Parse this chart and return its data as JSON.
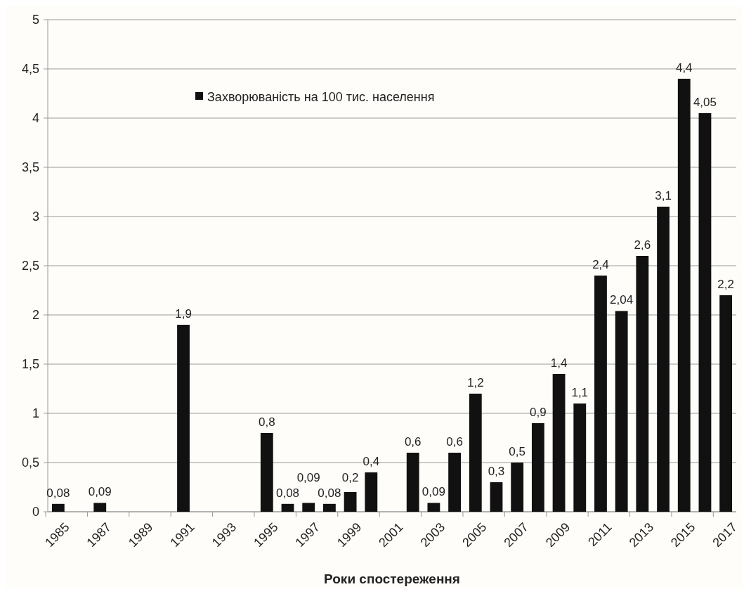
{
  "chart_data": {
    "type": "bar",
    "xlabel": "Роки  спостереження",
    "categories": [
      "1985",
      null,
      "1987",
      null,
      "1989",
      null,
      "1991",
      null,
      "1993",
      null,
      "1995",
      null,
      "1997",
      null,
      "1999",
      null,
      "2001",
      null,
      "2003",
      null,
      "2005",
      null,
      "2007",
      null,
      "2009",
      null,
      "2011",
      null,
      "2013",
      null,
      "2015",
      null,
      "2017"
    ],
    "series": [
      {
        "name": "Захворюваність на 100 тис. населення",
        "color": "#111111",
        "values": [
          0.08,
          null,
          0.09,
          null,
          null,
          null,
          1.9,
          null,
          null,
          null,
          0.8,
          0.08,
          0.09,
          0.08,
          0.2,
          0.4,
          null,
          0.6,
          0.09,
          0.6,
          1.2,
          0.3,
          0.5,
          0.9,
          1.4,
          1.1,
          2.4,
          2.04,
          2.6,
          3.1,
          4.4,
          4.05,
          2.2
        ],
        "value_labels": [
          "0,08",
          null,
          "0,09",
          null,
          null,
          null,
          "1,9",
          null,
          null,
          null,
          "0,8",
          "0,08",
          "0,09",
          "0,08",
          "0,2",
          "0,4",
          null,
          "0,6",
          "0,09",
          "0,6",
          "1,2",
          "0,3",
          "0,5",
          "0,9",
          "1,4",
          "1,1",
          "2,4",
          "2,04",
          "2,6",
          "3,1",
          "4,4",
          "4,05",
          "2,2"
        ]
      }
    ],
    "ylim": [
      0,
      5
    ],
    "yticks": [
      0,
      {
        "value": 0.5,
        "label": "0,5"
      },
      1,
      {
        "value": 1.5,
        "label": "1,5"
      },
      2,
      {
        "value": 2.5,
        "label": "2,5"
      },
      3,
      {
        "value": 3.5,
        "label": "3,5"
      },
      4,
      {
        "value": 4.5,
        "label": "4,5"
      },
      5
    ],
    "grid": "y",
    "legend": "top"
  }
}
